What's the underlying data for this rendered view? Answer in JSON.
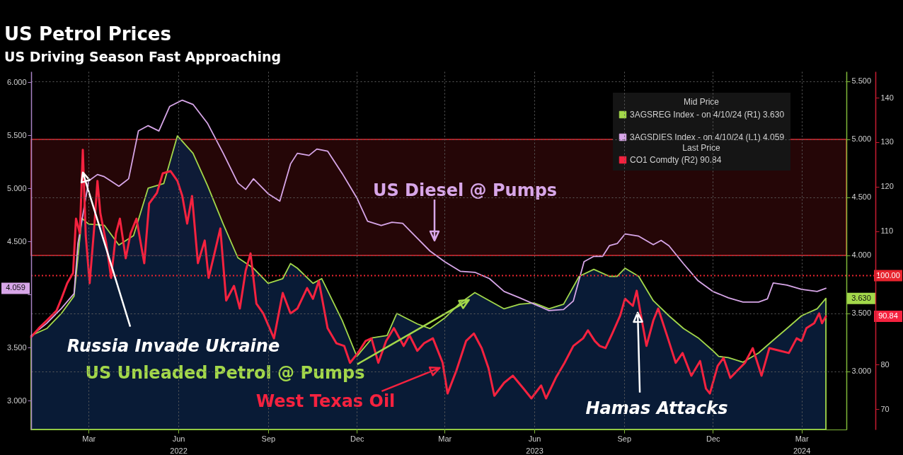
{
  "chart_data": {
    "type": "line",
    "title": "US Petrol Prices",
    "subtitle": "US Driving Season Fast Approaching",
    "legend_title": "Mid Price",
    "legend": "top right",
    "grid": true,
    "xlim": [
      "2022-01-16",
      "2024-05-01"
    ],
    "xticks": [
      {
        "value": "2022-03-16",
        "label": "Mar"
      },
      {
        "value": "2022-06-16",
        "label": "Jun\n2022"
      },
      {
        "value": "2022-09-16",
        "label": "Sep"
      },
      {
        "value": "2022-12-16",
        "label": "Dec"
      },
      {
        "value": "2023-03-16",
        "label": "Mar"
      },
      {
        "value": "2023-06-16",
        "label": "Jun\n2023"
      },
      {
        "value": "2023-09-16",
        "label": "Sep"
      },
      {
        "value": "2023-12-16",
        "label": "Dec"
      },
      {
        "value": "2024-03-16",
        "label": "Mar\n2024"
      }
    ],
    "ylim": [
      2.73,
      6.1
    ],
    "yticks": [
      {
        "value": 3,
        "label": "3.000"
      },
      {
        "value": 3.5,
        "label": "3.500"
      },
      {
        "value": 4,
        "label": null
      },
      {
        "value": 4.5,
        "label": "4.500"
      },
      {
        "value": 5,
        "label": "5.000"
      },
      {
        "value": 5.5,
        "label": "5.500"
      },
      {
        "value": 6,
        "label": "6.000"
      }
    ],
    "y2lim": [
      2.5,
      5.585
    ],
    "y2ticks": [
      {
        "value": 3,
        "label": "3.000"
      },
      {
        "value": 3.5,
        "label": "3.500"
      },
      {
        "value": 4,
        "label": "4.000"
      },
      {
        "value": 4.5,
        "label": "4.500"
      },
      {
        "value": 5,
        "label": "5.000"
      },
      {
        "value": 5.5,
        "label": "5.500"
      }
    ],
    "y3lim": [
      65.4,
      145.9
    ],
    "y3ticks": [
      70,
      80,
      {
        "value": 100,
        "label": null
      },
      110,
      120,
      130,
      140
    ],
    "bands": [
      {
        "axis": "y2",
        "from": 4,
        "to": 5,
        "color": "#e8242e"
      }
    ],
    "ref_lines": [
      {
        "axis": "y3",
        "value": 100,
        "label": "100.00",
        "color": "#e8242e",
        "line_style": "dotted"
      }
    ],
    "annotations": [
      {
        "text": "Russia Invade Ukraine",
        "x": "2022-03-10",
        "y": 5.15
      },
      {
        "text": "US Unleaded Petrol @ Pumps",
        "x": "2023-04-10",
        "y": 3.95
      },
      {
        "text": "West Texas Oil",
        "x": "2023-03-11",
        "y": 3.31
      },
      "US Diesel @ Pumps",
      {
        "text": "Hamas Attacks",
        "x": "2023-09-30",
        "y": 3.83
      },
      "Last Price",
      "3.630",
      "4.059",
      "90.84"
    ],
    "series": [
      {
        "name": "3AGSREG Index - on 4/10/24 (R1) 3.630",
        "type": "area",
        "axis": "y2",
        "color": "#a3d84a",
        "x": [
          "2022-01-16",
          "2022-02-01",
          "2022-02-16",
          "2022-03-01",
          "2022-03-09",
          "2022-03-16",
          "2022-04-01",
          "2022-04-16",
          "2022-05-01",
          "2022-05-16",
          "2022-06-01",
          "2022-06-15",
          "2022-07-01",
          "2022-07-16",
          "2022-08-01",
          "2022-08-16",
          "2022-09-01",
          "2022-09-16",
          "2022-10-01",
          "2022-10-09",
          "2022-10-16",
          "2022-11-01",
          "2022-11-10",
          "2022-12-01",
          "2022-12-16",
          "2023-01-01",
          "2023-01-16",
          "2023-01-26",
          "2023-02-16",
          "2023-03-01",
          "2023-03-16",
          "2023-04-01",
          "2023-04-16",
          "2023-05-01",
          "2023-05-16",
          "2023-06-01",
          "2023-06-16",
          "2023-07-01",
          "2023-07-16",
          "2023-08-01",
          "2023-08-16",
          "2023-09-01",
          "2023-09-09",
          "2023-09-17",
          "2023-10-01",
          "2023-10-16",
          "2023-11-01",
          "2023-11-16",
          "2023-12-01",
          "2023-12-16",
          "2023-12-22",
          "2024-01-01",
          "2024-01-16",
          "2024-02-01",
          "2024-02-16",
          "2024-03-01",
          "2024-03-16",
          "2024-04-01",
          "2024-04-10"
        ],
        "values": [
          3.31,
          3.37,
          3.5,
          3.65,
          4.32,
          4.27,
          4.26,
          4.09,
          4.17,
          4.58,
          4.62,
          5.03,
          4.88,
          4.6,
          4.27,
          3.98,
          3.89,
          3.76,
          3.8,
          3.93,
          3.89,
          3.76,
          3.8,
          3.44,
          3.13,
          3.29,
          3.31,
          3.5,
          3.41,
          3.37,
          3.46,
          3.59,
          3.68,
          3.61,
          3.54,
          3.58,
          3.59,
          3.54,
          3.58,
          3.82,
          3.88,
          3.82,
          3.82,
          3.89,
          3.82,
          3.61,
          3.48,
          3.37,
          3.29,
          3.18,
          3.13,
          3.12,
          3.08,
          3.16,
          3.27,
          3.37,
          3.48,
          3.54,
          3.63
        ]
      },
      {
        "name": "3AGSDIES Index - on 4/10/24 (L1) 4.059",
        "color": "#d7a6e8",
        "x": [
          "2022-01-16",
          "2022-02-01",
          "2022-02-16",
          "2022-03-01",
          "2022-03-05",
          "2022-03-16",
          "2022-03-25",
          "2022-04-01",
          "2022-04-16",
          "2022-04-26",
          "2022-05-06",
          "2022-05-16",
          "2022-05-27",
          "2022-06-07",
          "2022-06-20",
          "2022-07-01",
          "2022-07-16",
          "2022-08-01",
          "2022-08-16",
          "2022-08-24",
          "2022-09-01",
          "2022-09-16",
          "2022-09-28",
          "2022-10-09",
          "2022-10-16",
          "2022-10-28",
          "2022-11-05",
          "2022-11-16",
          "2022-12-01",
          "2022-12-16",
          "2022-12-27",
          "2023-01-10",
          "2023-01-21",
          "2023-02-01",
          "2023-02-16",
          "2023-03-01",
          "2023-03-16",
          "2023-04-01",
          "2023-04-16",
          "2023-05-01",
          "2023-05-16",
          "2023-06-01",
          "2023-06-16",
          "2023-07-01",
          "2023-07-16",
          "2023-07-26",
          "2023-08-06",
          "2023-08-16",
          "2023-08-25",
          "2023-09-01",
          "2023-09-09",
          "2023-09-17",
          "2023-10-01",
          "2023-10-16",
          "2023-10-24",
          "2023-11-01",
          "2023-11-16",
          "2023-12-01",
          "2023-12-16",
          "2024-01-01",
          "2024-01-16",
          "2024-02-01",
          "2024-02-10",
          "2024-02-16",
          "2024-03-01",
          "2024-03-16",
          "2024-04-01",
          "2024-04-10"
        ],
        "values": [
          3.61,
          3.73,
          3.87,
          4.01,
          4.48,
          5.07,
          5.13,
          5.11,
          5.02,
          5.09,
          5.54,
          5.59,
          5.54,
          5.77,
          5.83,
          5.79,
          5.61,
          5.33,
          5.05,
          4.99,
          5.09,
          4.95,
          4.88,
          5.23,
          5.33,
          5.31,
          5.37,
          5.35,
          5.14,
          4.91,
          4.69,
          4.65,
          4.68,
          4.67,
          4.53,
          4.41,
          4.31,
          4.22,
          4.21,
          4.15,
          4.03,
          3.97,
          3.91,
          3.85,
          3.86,
          3.94,
          4.31,
          4.36,
          4.36,
          4.46,
          4.48,
          4.57,
          4.55,
          4.47,
          4.51,
          4.46,
          4.29,
          4.13,
          4.03,
          3.97,
          3.93,
          3.93,
          3.96,
          4.11,
          4.09,
          4.05,
          4.03,
          4.059
        ]
      },
      {
        "name": "CO1 Comdty (R2) 90.84",
        "axis": "y3",
        "color": "#f5223f",
        "x": [
          "2022-01-16",
          "2022-01-24",
          "2022-02-01",
          "2022-02-11",
          "2022-02-16",
          "2022-02-22",
          "2022-02-28",
          "2022-03-03",
          "2022-03-07",
          "2022-03-10",
          "2022-03-13",
          "2022-03-17",
          "2022-03-22",
          "2022-03-25",
          "2022-03-28",
          "2022-04-03",
          "2022-04-08",
          "2022-04-13",
          "2022-04-17",
          "2022-04-23",
          "2022-04-28",
          "2022-05-04",
          "2022-05-12",
          "2022-05-17",
          "2022-05-25",
          "2022-05-31",
          "2022-06-08",
          "2022-06-15",
          "2022-06-20",
          "2022-06-25",
          "2022-06-30",
          "2022-07-06",
          "2022-07-13",
          "2022-07-17",
          "2022-07-23",
          "2022-07-29",
          "2022-08-04",
          "2022-08-12",
          "2022-08-18",
          "2022-08-24",
          "2022-08-29",
          "2022-09-04",
          "2022-09-11",
          "2022-09-22",
          "2022-10-01",
          "2022-10-09",
          "2022-10-16",
          "2022-10-26",
          "2022-11-01",
          "2022-11-07",
          "2022-11-16",
          "2022-11-25",
          "2022-12-03",
          "2022-12-09",
          "2022-12-17",
          "2022-12-25",
          "2022-12-31",
          "2023-01-07",
          "2023-01-15",
          "2023-01-23",
          "2023-02-02",
          "2023-02-08",
          "2023-02-16",
          "2023-02-23",
          "2023-03-04",
          "2023-03-14",
          "2023-03-19",
          "2023-03-28",
          "2023-04-07",
          "2023-04-15",
          "2023-04-23",
          "2023-04-30",
          "2023-05-06",
          "2023-05-16",
          "2023-05-25",
          "2023-06-05",
          "2023-06-13",
          "2023-06-23",
          "2023-06-28",
          "2023-07-08",
          "2023-07-17",
          "2023-07-26",
          "2023-08-05",
          "2023-08-10",
          "2023-08-17",
          "2023-08-22",
          "2023-08-28",
          "2023-09-04",
          "2023-09-12",
          "2023-09-17",
          "2023-09-25",
          "2023-09-29",
          "2023-10-03",
          "2023-10-09",
          "2023-10-16",
          "2023-10-21",
          "2023-10-31",
          "2023-11-08",
          "2023-11-15",
          "2023-11-24",
          "2023-12-03",
          "2023-12-09",
          "2023-12-13",
          "2023-12-21",
          "2023-12-27",
          "2024-01-03",
          "2024-01-10",
          "2024-01-18",
          "2024-01-26",
          "2024-02-04",
          "2024-02-12",
          "2024-02-23",
          "2024-03-03",
          "2024-03-11",
          "2024-03-16",
          "2024-03-21",
          "2024-03-29",
          "2024-04-03",
          "2024-04-06",
          "2024-04-10"
        ],
        "values": [
          86.2,
          88.2,
          89.9,
          92.1,
          94.8,
          98.3,
          100.6,
          112.8,
          109.5,
          128.3,
          109.0,
          98.3,
          111.7,
          121.3,
          114.0,
          107.3,
          99.5,
          109.5,
          112.8,
          103.9,
          109.5,
          112.8,
          102.8,
          116.2,
          118.6,
          123.0,
          123.5,
          121.3,
          117.9,
          111.7,
          117.9,
          102.8,
          107.9,
          99.5,
          105.0,
          110.6,
          94.4,
          97.7,
          92.6,
          101.1,
          105.0,
          93.7,
          91.5,
          85.9,
          96.1,
          91.5,
          92.6,
          97.2,
          94.8,
          98.8,
          88.2,
          84.8,
          84.2,
          80.4,
          82.6,
          85.3,
          85.9,
          80.4,
          85.3,
          88.2,
          84.2,
          86.6,
          83.1,
          84.8,
          85.9,
          80.4,
          73.5,
          78.6,
          85.3,
          87.0,
          83.7,
          79.2,
          73.0,
          75.9,
          77.5,
          74.6,
          72.4,
          75.3,
          72.4,
          77.0,
          80.4,
          84.2,
          85.9,
          87.7,
          85.3,
          84.2,
          83.7,
          87.0,
          91.0,
          94.8,
          93.2,
          96.6,
          91.5,
          84.2,
          89.9,
          92.6,
          85.9,
          80.4,
          82.6,
          77.5,
          80.8,
          74.6,
          73.5,
          79.7,
          81.5,
          77.0,
          78.6,
          80.4,
          83.7,
          77.5,
          83.7,
          83.1,
          82.6,
          85.9,
          85.3,
          88.2,
          89.3,
          91.5,
          89.3,
          90.84
        ]
      }
    ]
  }
}
